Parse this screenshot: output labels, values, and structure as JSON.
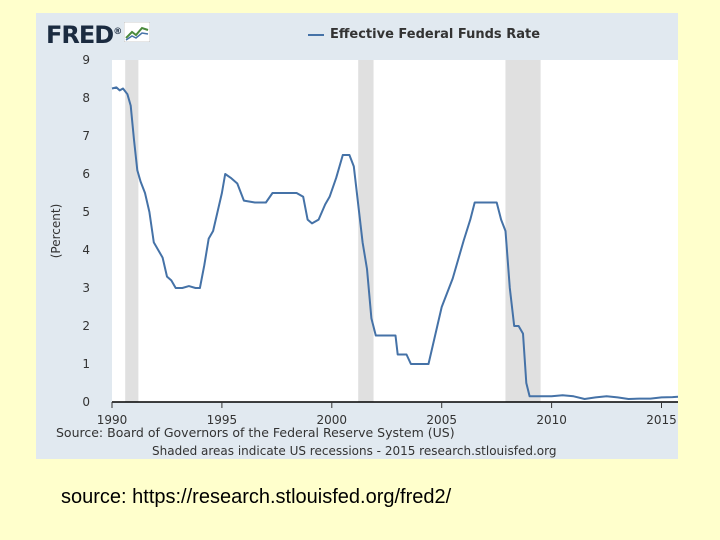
{
  "logo": {
    "text": "FRED",
    "mark": "®"
  },
  "legend_icon": "line-swatch",
  "source_line1": "Source: Board of Governors of the Federal Reserve System (US)",
  "source_line2": "Shaded areas indicate US recessions - 2015 research.stlouisfed.org",
  "footer": "source: https://research.stlouisfed.org/fred2/",
  "colors": {
    "line": "#4572a7",
    "recession": "#e0e0e0",
    "plot_bg": "#ffffff",
    "panel_bg": "#e1e9f0",
    "page_bg": "#ffffcc"
  },
  "chart_data": {
    "type": "line",
    "title": "",
    "xlabel": "",
    "ylabel": "(Percent)",
    "xlim": [
      1990,
      2015.75
    ],
    "ylim": [
      0,
      9
    ],
    "xticks": [
      "1990",
      "1995",
      "2000",
      "2005",
      "2010",
      "2015"
    ],
    "yticks": [
      "0",
      "1",
      "2",
      "3",
      "4",
      "5",
      "6",
      "7",
      "8",
      "9"
    ],
    "grid": false,
    "legend_position": "top-center",
    "recessions": [
      [
        1990.6,
        1991.2
      ],
      [
        2001.2,
        2001.9
      ],
      [
        2007.9,
        2009.5
      ]
    ],
    "series": [
      {
        "name": "Effective Federal Funds Rate",
        "x": [
          1990.0,
          1990.2,
          1990.35,
          1990.5,
          1990.7,
          1990.85,
          1991.0,
          1991.15,
          1991.3,
          1991.5,
          1991.7,
          1991.9,
          1992.1,
          1992.3,
          1992.5,
          1992.7,
          1992.9,
          1993.2,
          1993.5,
          1993.8,
          1994.0,
          1994.2,
          1994.4,
          1994.6,
          1994.8,
          1995.0,
          1995.15,
          1995.4,
          1995.7,
          1996.0,
          1996.5,
          1997.0,
          1997.3,
          1997.6,
          1998.0,
          1998.4,
          1998.7,
          1998.9,
          1999.1,
          1999.4,
          1999.7,
          1999.9,
          2000.2,
          2000.5,
          2000.8,
          2001.0,
          2001.2,
          2001.4,
          2001.6,
          2001.8,
          2002.0,
          2002.5,
          2002.9,
          2003.0,
          2003.4,
          2003.6,
          2004.0,
          2004.4,
          2004.6,
          2004.8,
          2005.0,
          2005.5,
          2006.0,
          2006.3,
          2006.5,
          2006.7,
          2007.0,
          2007.5,
          2007.7,
          2007.9,
          2008.1,
          2008.3,
          2008.5,
          2008.7,
          2008.85,
          2009.0,
          2009.5,
          2010.0,
          2010.5,
          2011.0,
          2011.5,
          2012.0,
          2012.5,
          2013.0,
          2013.5,
          2014.0,
          2014.5,
          2015.0,
          2015.5,
          2015.75
        ],
        "values": [
          8.25,
          8.28,
          8.2,
          8.25,
          8.1,
          7.8,
          6.9,
          6.1,
          5.8,
          5.5,
          5.0,
          4.2,
          4.0,
          3.8,
          3.3,
          3.2,
          3.0,
          3.0,
          3.05,
          3.0,
          3.0,
          3.6,
          4.3,
          4.5,
          5.0,
          5.5,
          6.0,
          5.9,
          5.75,
          5.3,
          5.25,
          5.25,
          5.5,
          5.5,
          5.5,
          5.5,
          5.4,
          4.8,
          4.7,
          4.8,
          5.2,
          5.4,
          5.9,
          6.5,
          6.5,
          6.2,
          5.2,
          4.2,
          3.5,
          2.2,
          1.75,
          1.75,
          1.75,
          1.25,
          1.25,
          1.0,
          1.0,
          1.0,
          1.5,
          2.0,
          2.5,
          3.25,
          4.25,
          4.8,
          5.25,
          5.25,
          5.25,
          5.25,
          4.8,
          4.5,
          3.0,
          2.0,
          2.0,
          1.8,
          0.5,
          0.15,
          0.15,
          0.15,
          0.18,
          0.15,
          0.08,
          0.12,
          0.15,
          0.12,
          0.08,
          0.09,
          0.09,
          0.12,
          0.13,
          0.14
        ]
      }
    ]
  }
}
